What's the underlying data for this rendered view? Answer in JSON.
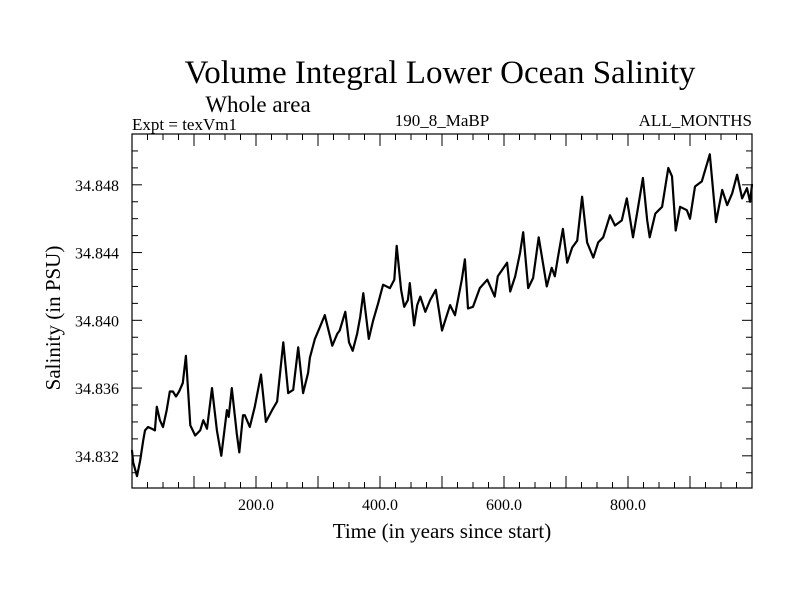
{
  "chart_data": {
    "type": "line",
    "title": "Volume Integral Lower Ocean Salinity",
    "subtitle": "Whole area",
    "annotations": {
      "left": "Expt = texVm1",
      "center": "190_8_MaBP",
      "right": "ALL_MONTHS"
    },
    "xlabel": "Time (in years since start)",
    "ylabel": "Salinity (in PSU)",
    "xlim": [
      0,
      1000
    ],
    "ylim": [
      34.8301,
      34.851
    ],
    "x_ticks": [
      {
        "value": 200,
        "label": "200.0"
      },
      {
        "value": 400,
        "label": "400.0"
      },
      {
        "value": 600,
        "label": "600.0"
      },
      {
        "value": 800,
        "label": "800.0"
      }
    ],
    "x_minor_step": 25,
    "y_ticks": [
      {
        "value": 34.832,
        "label": "34.832"
      },
      {
        "value": 34.836,
        "label": "34.836"
      },
      {
        "value": 34.84,
        "label": "34.840"
      },
      {
        "value": 34.844,
        "label": "34.844"
      },
      {
        "value": 34.848,
        "label": "34.848"
      }
    ],
    "y_minor_step": 0.001,
    "grid": false,
    "legend": "none",
    "series": [
      {
        "name": "Lower Ocean Salinity",
        "color": "#000000",
        "x": [
          0,
          2,
          8,
          13,
          18,
          21,
          26,
          32,
          37,
          40,
          45,
          50,
          56,
          61,
          66,
          71,
          76,
          82,
          87,
          94,
          102,
          110,
          115,
          121,
          129,
          137,
          144,
          153,
          156,
          161,
          169,
          173,
          179,
          182,
          190,
          198,
          208,
          216,
          226,
          234,
          244,
          252,
          260,
          268,
          276,
          284,
          287,
          295,
          303,
          311,
          323,
          331,
          335,
          344,
          350,
          356,
          363,
          368,
          373,
          382,
          389,
          397,
          405,
          416,
          423,
          427,
          434,
          439,
          445,
          448,
          455,
          460,
          465,
          473,
          481,
          490,
          500,
          513,
          521,
          532,
          537,
          542,
          550,
          561,
          573,
          585,
          590,
          605,
          610,
          618,
          626,
          631,
          639,
          647,
          656,
          669,
          677,
          682,
          687,
          695,
          702,
          710,
          718,
          726,
          734,
          744,
          752,
          760,
          771,
          779,
          790,
          798,
          808,
          815,
          824,
          831,
          835,
          844,
          855,
          865,
          871,
          877,
          884,
          895,
          900,
          908,
          919,
          932,
          942,
          952,
          960,
          968,
          976,
          984,
          992,
          997,
          1000
        ],
        "y": [
          34.8323,
          34.8316,
          34.8308,
          34.8317,
          34.8329,
          34.8335,
          34.8337,
          34.8336,
          34.8335,
          34.8349,
          34.8341,
          34.8337,
          34.8347,
          34.8358,
          34.8358,
          34.8355,
          34.8358,
          34.8363,
          34.8379,
          34.8338,
          34.8332,
          34.8335,
          34.8341,
          34.8336,
          34.836,
          34.8335,
          34.832,
          34.8347,
          34.8343,
          34.836,
          34.8333,
          34.8322,
          34.8344,
          34.8344,
          34.8337,
          34.8349,
          34.8368,
          34.834,
          34.8347,
          34.8352,
          34.8387,
          34.8357,
          34.8359,
          34.8384,
          34.8357,
          34.8369,
          34.8378,
          34.8389,
          34.8396,
          34.8403,
          34.8385,
          34.8392,
          34.8394,
          34.8405,
          34.8387,
          34.8382,
          34.8392,
          34.8402,
          34.8416,
          34.8389,
          34.84,
          34.841,
          34.8421,
          34.8419,
          34.8424,
          34.8444,
          34.8418,
          34.8408,
          34.8412,
          34.8422,
          34.8397,
          34.8409,
          34.8414,
          34.8405,
          34.8412,
          34.8418,
          34.8394,
          34.8409,
          34.8403,
          34.8424,
          34.8436,
          34.8407,
          34.8408,
          34.8419,
          34.8424,
          34.8414,
          34.8426,
          34.8434,
          34.8417,
          34.8426,
          34.844,
          34.8452,
          34.8419,
          34.8425,
          34.8449,
          34.842,
          34.8431,
          34.8426,
          34.8437,
          34.8454,
          34.8434,
          34.8443,
          34.8447,
          34.8473,
          34.8446,
          34.8437,
          34.8446,
          34.8449,
          34.8462,
          34.8456,
          34.8459,
          34.8472,
          34.8449,
          34.8464,
          34.8484,
          34.8459,
          34.8449,
          34.8463,
          34.8467,
          34.849,
          34.8485,
          34.8453,
          34.8467,
          34.8465,
          34.846,
          34.8479,
          34.8482,
          34.8498,
          34.8458,
          34.8477,
          34.8468,
          34.8475,
          34.8486,
          34.8472,
          34.8478,
          34.847,
          34.848
        ]
      }
    ]
  }
}
